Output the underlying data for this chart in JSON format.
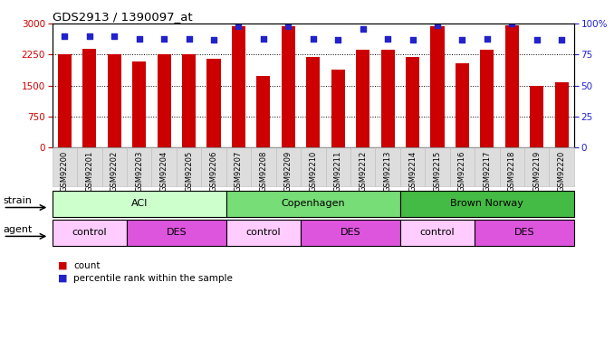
{
  "title": "GDS2913 / 1390097_at",
  "samples": [
    "GSM92200",
    "GSM92201",
    "GSM92202",
    "GSM92203",
    "GSM92204",
    "GSM92205",
    "GSM92206",
    "GSM92207",
    "GSM92208",
    "GSM92209",
    "GSM92210",
    "GSM92211",
    "GSM92212",
    "GSM92213",
    "GSM92214",
    "GSM92215",
    "GSM92216",
    "GSM92217",
    "GSM92218",
    "GSM92219",
    "GSM92220"
  ],
  "counts": [
    2250,
    2400,
    2270,
    2080,
    2250,
    2270,
    2150,
    2940,
    1740,
    2940,
    2200,
    1890,
    2370,
    2360,
    2200,
    2940,
    2040,
    2370,
    2970,
    1500,
    1590
  ],
  "percentiles": [
    90,
    90,
    90,
    88,
    88,
    88,
    87,
    98,
    88,
    98,
    88,
    87,
    96,
    88,
    87,
    99,
    87,
    88,
    100,
    87,
    87
  ],
  "bar_color": "#CC0000",
  "dot_color": "#2222CC",
  "ylim_left": [
    0,
    3000
  ],
  "ylim_right": [
    0,
    100
  ],
  "yticks_left": [
    0,
    750,
    1500,
    2250,
    3000
  ],
  "yticks_right": [
    0,
    25,
    50,
    75,
    100
  ],
  "grid_values": [
    750,
    1500,
    2250
  ],
  "strain_groups": [
    {
      "label": "ACI",
      "start": 0,
      "end": 6,
      "color": "#CCFFCC"
    },
    {
      "label": "Copenhagen",
      "start": 7,
      "end": 13,
      "color": "#77DD77"
    },
    {
      "label": "Brown Norway",
      "start": 14,
      "end": 20,
      "color": "#44BB44"
    }
  ],
  "agent_groups": [
    {
      "label": "control",
      "start": 0,
      "end": 2,
      "color": "#FFCCFF"
    },
    {
      "label": "DES",
      "start": 3,
      "end": 6,
      "color": "#DD55DD"
    },
    {
      "label": "control",
      "start": 7,
      "end": 9,
      "color": "#FFCCFF"
    },
    {
      "label": "DES",
      "start": 10,
      "end": 13,
      "color": "#DD55DD"
    },
    {
      "label": "control",
      "start": 14,
      "end": 16,
      "color": "#FFCCFF"
    },
    {
      "label": "DES",
      "start": 17,
      "end": 20,
      "color": "#DD55DD"
    }
  ],
  "strain_label": "strain",
  "agent_label": "agent",
  "legend_count_label": "count",
  "legend_pct_label": "percentile rank within the sample",
  "bg_color": "#FFFFFF",
  "left_axis_color": "#CC0000",
  "right_axis_color": "#2222CC",
  "xtick_bg_color": "#DDDDDD",
  "xtick_border_color": "#BBBBBB"
}
